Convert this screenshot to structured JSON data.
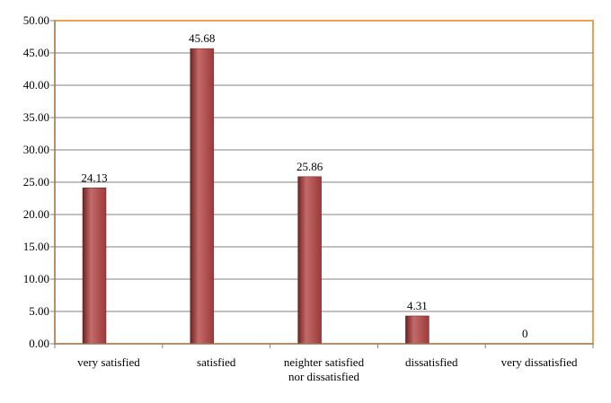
{
  "chart_data": {
    "type": "bar",
    "title": "",
    "xlabel": "",
    "ylabel": "",
    "categories": [
      [
        "very satisfied"
      ],
      [
        "satisfied"
      ],
      [
        "neighter satisfied",
        "nor dissatisfied"
      ],
      [
        "dissatisfied"
      ],
      [
        "very dissatisfied"
      ]
    ],
    "values": [
      24.13,
      45.68,
      25.86,
      4.31,
      0
    ],
    "data_labels": [
      "24.13",
      "45.68",
      "25.86",
      "4.31",
      "0"
    ],
    "yticks": [
      "0.00",
      "5.00",
      "10.00",
      "15.00",
      "20.00",
      "25.00",
      "30.00",
      "35.00",
      "40.00",
      "45.00",
      "50.00"
    ],
    "ylim": [
      0,
      50
    ],
    "grid": true,
    "legend": "none",
    "colors": {
      "bar": "#9b3a3a",
      "bar_dark": "#6e2222",
      "bar_light": "#c46a6a",
      "frame": "#f0a050",
      "grid": "#808080",
      "axis": "#808080"
    }
  }
}
